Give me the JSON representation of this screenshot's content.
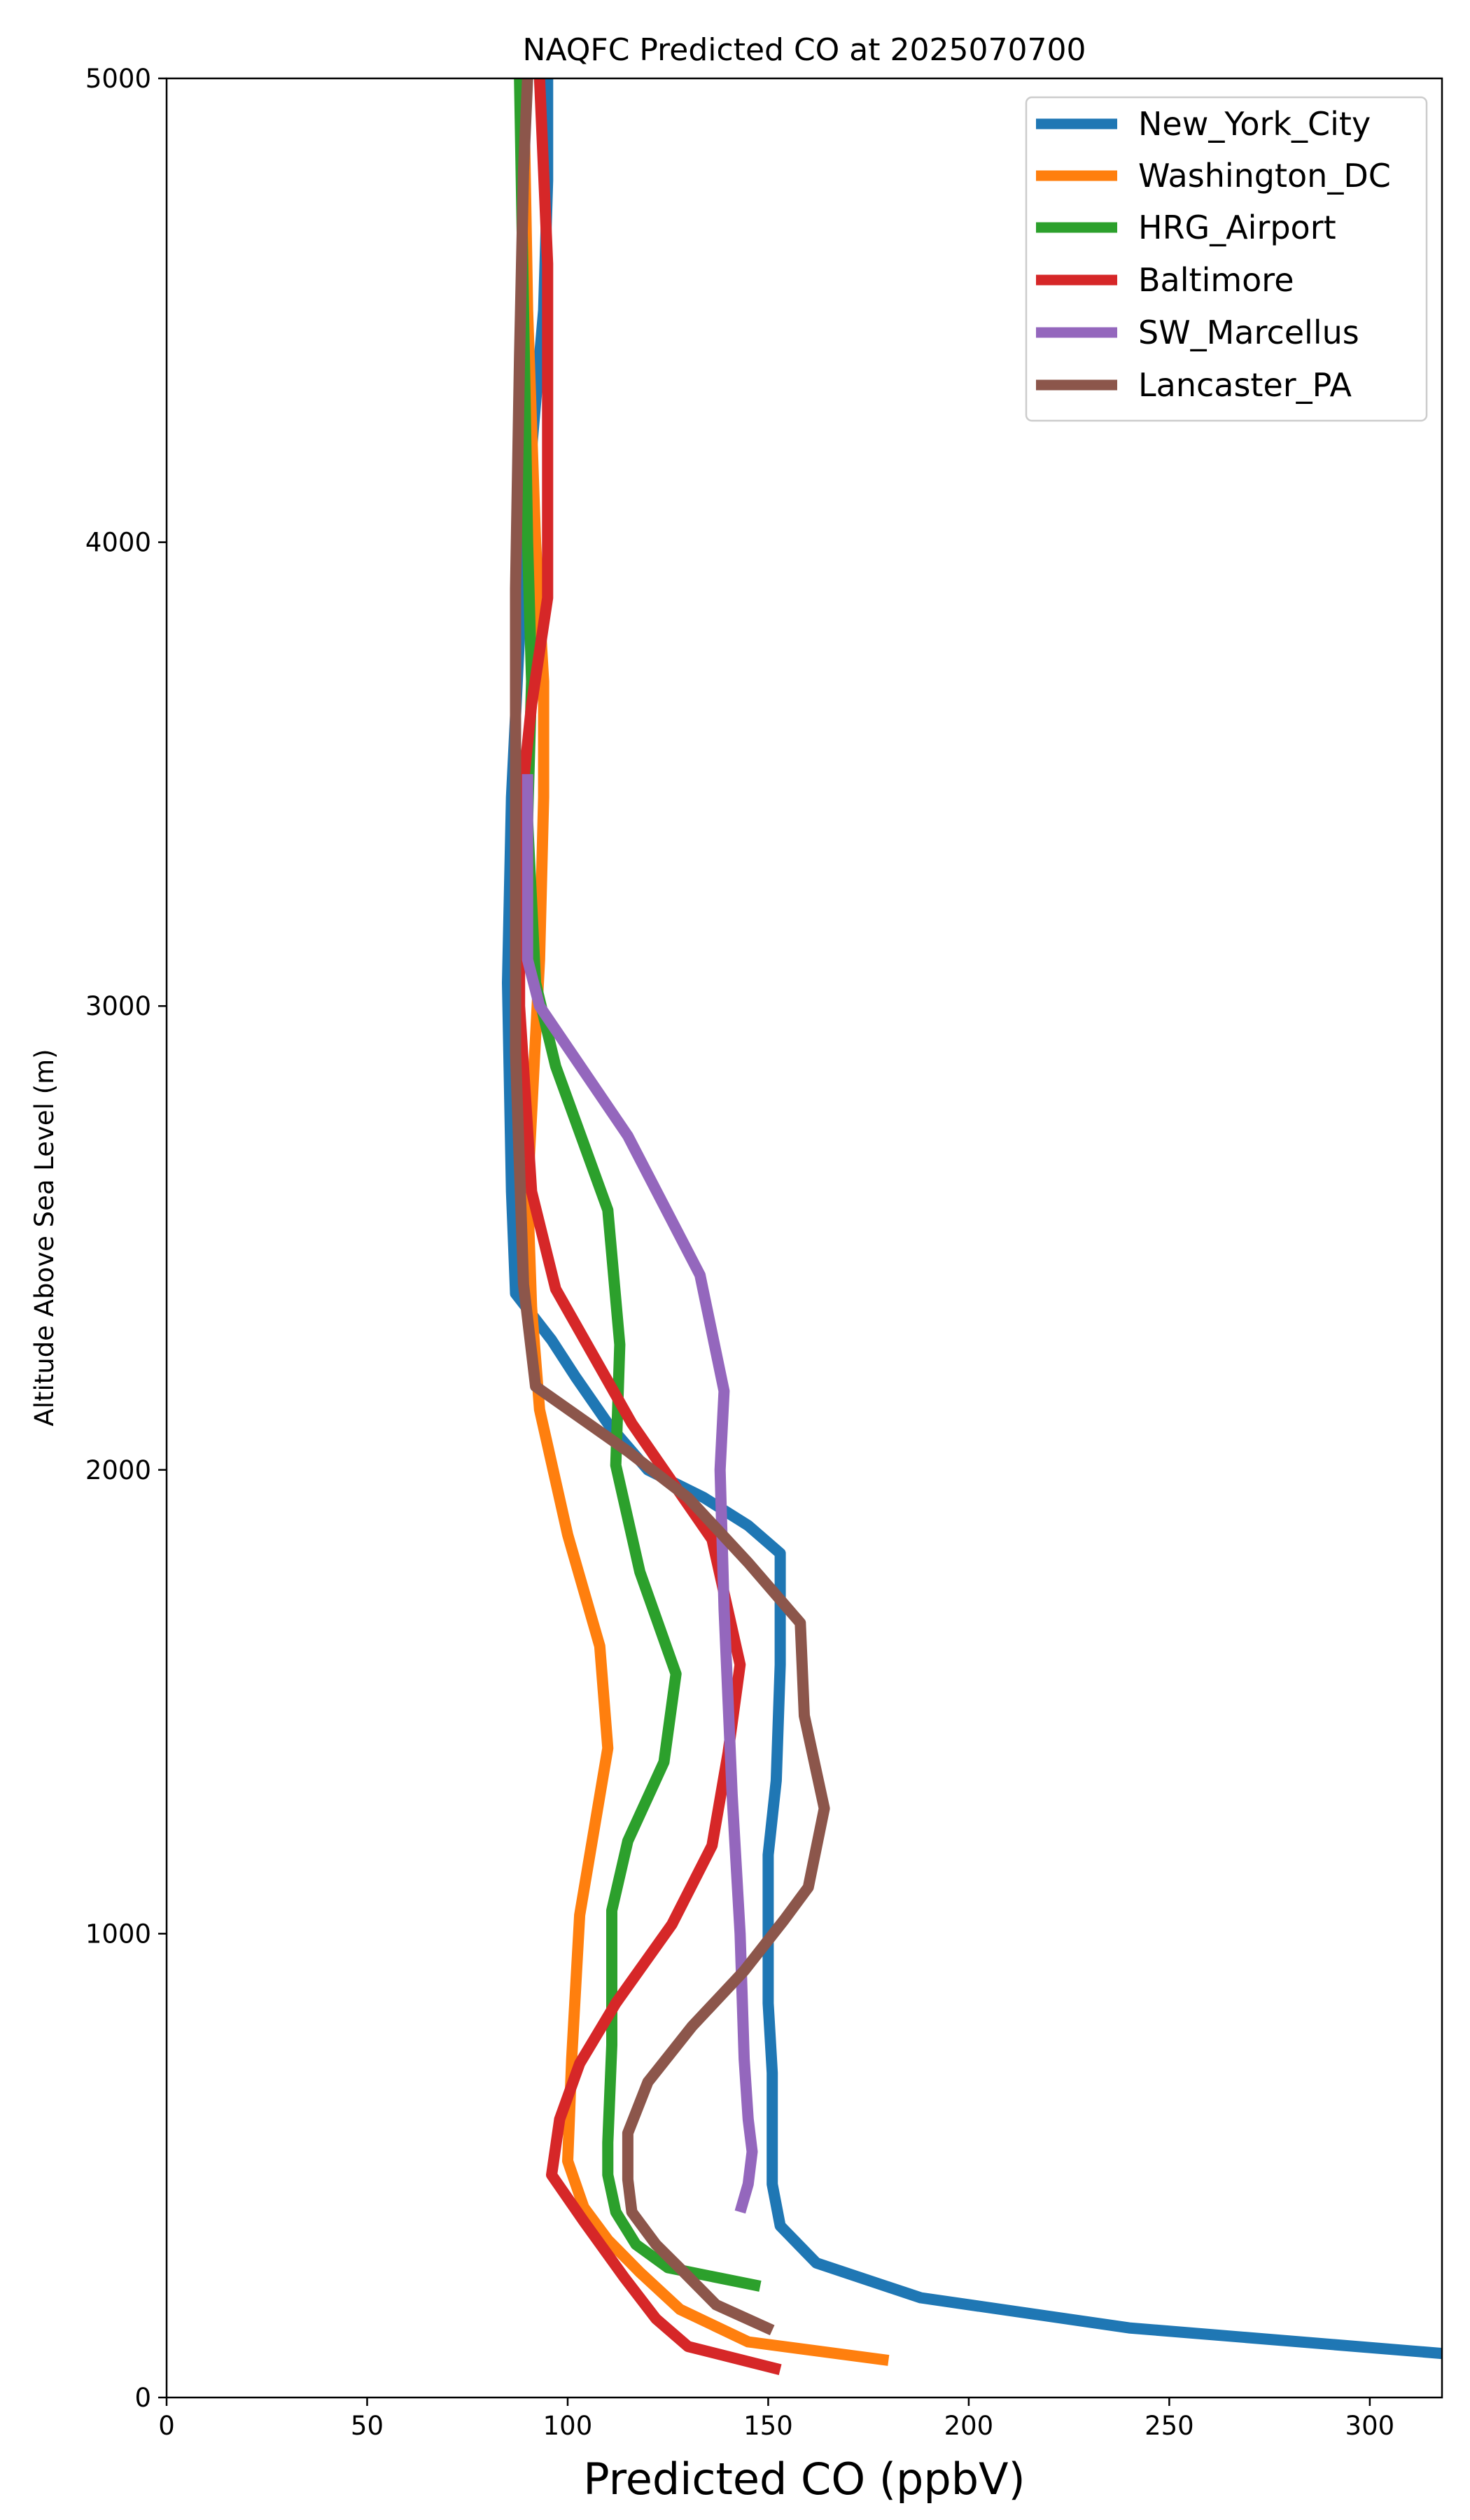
{
  "chart_data": {
    "type": "line",
    "title": "NAQFC Predicted CO at 2025070700",
    "xlabel": "Predicted CO (ppbV)",
    "ylabel": "Altitude Above Sea Level (m)",
    "xlim": [
      0,
      318
    ],
    "ylim": [
      0,
      5000
    ],
    "xticks": [
      0,
      50,
      100,
      150,
      200,
      250,
      300
    ],
    "yticks": [
      0,
      1000,
      2000,
      3000,
      4000,
      5000
    ],
    "grid": false,
    "legend_position": "top-right",
    "series": [
      {
        "name": "New_York_City",
        "color": "#1f77b4",
        "points": [
          [
            318,
            95
          ],
          [
            240,
            150
          ],
          [
            188,
            215
          ],
          [
            162,
            290
          ],
          [
            153,
            370
          ],
          [
            151,
            460
          ],
          [
            151,
            700
          ],
          [
            150,
            850
          ],
          [
            150,
            1000
          ],
          [
            150,
            1170
          ],
          [
            152,
            1330
          ],
          [
            153,
            1580
          ],
          [
            153,
            1820
          ],
          [
            145,
            1880
          ],
          [
            134,
            1940
          ],
          [
            120,
            2000
          ],
          [
            110,
            2100
          ],
          [
            102,
            2200
          ],
          [
            96,
            2280
          ],
          [
            87,
            2380
          ],
          [
            86,
            2600
          ],
          [
            85,
            3050
          ],
          [
            86,
            3450
          ],
          [
            88,
            3800
          ],
          [
            91,
            4200
          ],
          [
            94,
            4500
          ],
          [
            95,
            4780
          ],
          [
            95,
            5000
          ]
        ]
      },
      {
        "name": "Washington_DC",
        "color": "#ff7f0e",
        "points": [
          [
            180,
            80
          ],
          [
            145,
            120
          ],
          [
            128,
            190
          ],
          [
            118,
            270
          ],
          [
            110,
            340
          ],
          [
            104,
            410
          ],
          [
            100,
            510
          ],
          [
            101,
            730
          ],
          [
            103,
            1040
          ],
          [
            110,
            1400
          ],
          [
            108,
            1620
          ],
          [
            100,
            1860
          ],
          [
            93,
            2130
          ],
          [
            91,
            2350
          ],
          [
            90,
            2600
          ],
          [
            93,
            3100
          ],
          [
            94,
            3450
          ],
          [
            94,
            3700
          ],
          [
            92,
            4000
          ],
          [
            90,
            4500
          ],
          [
            89,
            5000
          ]
        ]
      },
      {
        "name": "HRG_Airport",
        "color": "#2ca02c",
        "points": [
          [
            148,
            240
          ],
          [
            125,
            280
          ],
          [
            117,
            330
          ],
          [
            112,
            400
          ],
          [
            110,
            480
          ],
          [
            110,
            550
          ],
          [
            111,
            760
          ],
          [
            111,
            1050
          ],
          [
            115,
            1200
          ],
          [
            124,
            1370
          ],
          [
            127,
            1560
          ],
          [
            118,
            1780
          ],
          [
            112,
            2010
          ],
          [
            113,
            2270
          ],
          [
            110,
            2560
          ],
          [
            97,
            2870
          ],
          [
            92,
            3050
          ],
          [
            90,
            3400
          ],
          [
            91,
            3700
          ],
          [
            90,
            4000
          ],
          [
            89,
            4500
          ],
          [
            88,
            5000
          ]
        ]
      },
      {
        "name": "Baltimore",
        "color": "#d62728",
        "points": [
          [
            153,
            60
          ],
          [
            130,
            110
          ],
          [
            122,
            170
          ],
          [
            114,
            260
          ],
          [
            104,
            380
          ],
          [
            96,
            480
          ],
          [
            98,
            600
          ],
          [
            103,
            720
          ],
          [
            112,
            850
          ],
          [
            126,
            1020
          ],
          [
            136,
            1190
          ],
          [
            140,
            1390
          ],
          [
            143,
            1580
          ],
          [
            136,
            1850
          ],
          [
            116,
            2100
          ],
          [
            97,
            2390
          ],
          [
            91,
            2600
          ],
          [
            88,
            3000
          ],
          [
            88,
            3400
          ],
          [
            91,
            3650
          ],
          [
            95,
            3880
          ],
          [
            95,
            4200
          ],
          [
            95,
            4600
          ],
          [
            93,
            5000
          ]
        ]
      },
      {
        "name": "SW_Marcellus",
        "color": "#9467bd",
        "points": [
          [
            143,
            400
          ],
          [
            145,
            460
          ],
          [
            146,
            530
          ],
          [
            145,
            600
          ],
          [
            144,
            730
          ],
          [
            143,
            1000
          ],
          [
            141,
            1300
          ],
          [
            139,
            1700
          ],
          [
            138,
            2000
          ],
          [
            139,
            2170
          ],
          [
            133,
            2420
          ],
          [
            115,
            2720
          ],
          [
            93,
            3000
          ],
          [
            90,
            3100
          ],
          [
            90,
            3500
          ]
        ]
      },
      {
        "name": "Lancaster_PA",
        "color": "#8c564b",
        "points": [
          [
            151,
            145
          ],
          [
            137,
            200
          ],
          [
            129,
            270
          ],
          [
            122,
            330
          ],
          [
            116,
            400
          ],
          [
            115,
            470
          ],
          [
            115,
            570
          ],
          [
            120,
            680
          ],
          [
            131,
            800
          ],
          [
            144,
            920
          ],
          [
            154,
            1030
          ],
          [
            160,
            1100
          ],
          [
            164,
            1270
          ],
          [
            159,
            1470
          ],
          [
            158,
            1670
          ],
          [
            145,
            1800
          ],
          [
            130,
            1940
          ],
          [
            115,
            2040
          ],
          [
            92,
            2180
          ],
          [
            89,
            2400
          ],
          [
            87,
            2900
          ],
          [
            87,
            3400
          ],
          [
            87,
            3900
          ],
          [
            88,
            4400
          ],
          [
            89,
            4800
          ],
          [
            90,
            5000
          ]
        ]
      }
    ]
  }
}
